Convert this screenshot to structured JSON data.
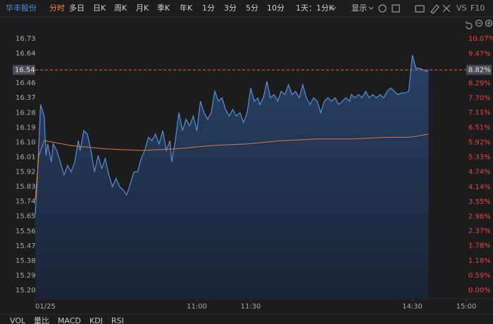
{
  "toolbar": {
    "stock": "华丰股份",
    "tabs": [
      "分时",
      "多日",
      "日K",
      "周K",
      "月K",
      "季K",
      "年K",
      "1分",
      "3分",
      "5分",
      "10分",
      "1天：1分K"
    ],
    "display": "显示",
    "vs": "VS",
    "f10": "F10"
  },
  "chart_data": {
    "type": "line",
    "xlim": [
      0,
      240
    ],
    "xticks": [
      {
        "value": 0,
        "label": "01/25"
      },
      {
        "value": 90,
        "label": "11:00"
      },
      {
        "value": 120,
        "label": "11:30"
      },
      {
        "value": 210,
        "label": "14:30"
      },
      {
        "value": 240,
        "label": "15:00"
      }
    ],
    "ylim": [
      15.2,
      16.73
    ],
    "yticks": [
      {
        "value": 15.2,
        "label": "15.20"
      },
      15.29,
      15.38,
      15.47,
      15.56,
      15.65,
      15.74,
      15.83,
      15.92,
      16.01,
      {
        "value": 16.1,
        "label": "16.10"
      },
      16.19,
      16.28,
      16.37,
      16.46,
      16.64,
      16.73
    ],
    "y2lim": [
      0,
      10.07
    ],
    "y2ticks": [
      {
        "value": 0,
        "label": "0.00%"
      },
      {
        "value": 0.59,
        "label": "0.59%"
      },
      {
        "value": 1.18,
        "label": "1.18%"
      },
      {
        "value": 1.78,
        "label": "1.78%"
      },
      {
        "value": 2.37,
        "label": "2.37%"
      },
      {
        "value": 2.96,
        "label": "2.96%"
      },
      {
        "value": 3.55,
        "label": "3.55%"
      },
      {
        "value": 4.14,
        "label": "4.14%"
      },
      {
        "value": 4.74,
        "label": "4.74%"
      },
      {
        "value": 5.33,
        "label": "5.33%"
      },
      {
        "value": 5.92,
        "label": "5.92%"
      },
      {
        "value": 6.51,
        "label": "6.51%"
      },
      {
        "value": 7.11,
        "label": "7.11%"
      },
      {
        "value": 7.7,
        "label": "7.70%"
      },
      {
        "value": 8.29,
        "label": "8.29%"
      },
      {
        "value": 9.47,
        "label": "9.47%"
      },
      {
        "value": 10.07,
        "label": "10.07%"
      }
    ],
    "last_price": 16.54,
    "last_change": {
      "value": 8.82,
      "label": "8.82%"
    },
    "series": [
      {
        "color": "#5b8fd6",
        "x": [
          0,
          1,
          3,
          5,
          6,
          7,
          9,
          10,
          12,
          14,
          16,
          18,
          20,
          22,
          24,
          25,
          27,
          29,
          31,
          33,
          35,
          37,
          39,
          41,
          43,
          45,
          47,
          49,
          51,
          53,
          55,
          57,
          59,
          61,
          63,
          65,
          67,
          69,
          71,
          73,
          75,
          76,
          78,
          80,
          82,
          84,
          86,
          88,
          90,
          92,
          94,
          96,
          98,
          100,
          102,
          104,
          106,
          108,
          110,
          112,
          114,
          116,
          118,
          120,
          122,
          124,
          125,
          127,
          129,
          131,
          133,
          135,
          137,
          139,
          141,
          143,
          145,
          147,
          149,
          151,
          153,
          155,
          157,
          159,
          161,
          163,
          165,
          167,
          169,
          171,
          173,
          175,
          176,
          178,
          180,
          182,
          184,
          186,
          188,
          190,
          192,
          194,
          196,
          198,
          200,
          202,
          204,
          206,
          208,
          209,
          210,
          212,
          214,
          216,
          218,
          219
        ],
        "values": [
          15.66,
          15.83,
          16.33,
          16.26,
          16.02,
          16.09,
          15.98,
          16.09,
          16.05,
          15.98,
          15.9,
          15.96,
          15.92,
          15.98,
          16.11,
          16.05,
          16.17,
          16.15,
          16.05,
          15.92,
          16.02,
          15.94,
          16.0,
          15.9,
          15.83,
          15.88,
          15.83,
          15.81,
          15.78,
          15.85,
          15.92,
          15.92,
          16.0,
          16.05,
          16.13,
          16.11,
          16.15,
          16.09,
          16.17,
          16.05,
          16.11,
          15.98,
          16.11,
          16.28,
          16.17,
          16.24,
          16.2,
          16.26,
          16.17,
          16.35,
          16.28,
          16.24,
          16.28,
          16.41,
          16.35,
          16.37,
          16.3,
          16.26,
          16.3,
          16.26,
          16.28,
          16.22,
          16.28,
          16.43,
          16.35,
          16.37,
          16.33,
          16.37,
          16.47,
          16.37,
          16.39,
          16.35,
          16.41,
          16.39,
          16.45,
          16.39,
          16.41,
          16.37,
          16.45,
          16.37,
          16.33,
          16.37,
          16.35,
          16.28,
          16.35,
          16.37,
          16.35,
          16.37,
          16.33,
          16.35,
          16.37,
          16.35,
          16.39,
          16.37,
          16.39,
          16.37,
          16.41,
          16.37,
          16.39,
          16.37,
          16.39,
          16.37,
          16.41,
          16.43,
          16.41,
          16.39,
          16.4,
          16.4,
          16.41,
          16.52,
          16.63,
          16.55,
          16.55,
          16.54,
          16.53,
          16.54
        ]
      },
      {
        "color": "#e07b39",
        "x": [
          0,
          2,
          5,
          10,
          20,
          39,
          59,
          78,
          98,
          118,
          137,
          157,
          176,
          196,
          208,
          214,
          219
        ],
        "values": [
          15.75,
          16.02,
          16.11,
          16.1,
          16.08,
          16.06,
          16.05,
          16.06,
          16.08,
          16.09,
          16.11,
          16.12,
          16.12,
          16.13,
          16.13,
          16.14,
          16.15
        ]
      }
    ]
  },
  "indicator_tabs": [
    "VOL",
    "量比",
    "MACD",
    "KDJ",
    "RSI"
  ]
}
